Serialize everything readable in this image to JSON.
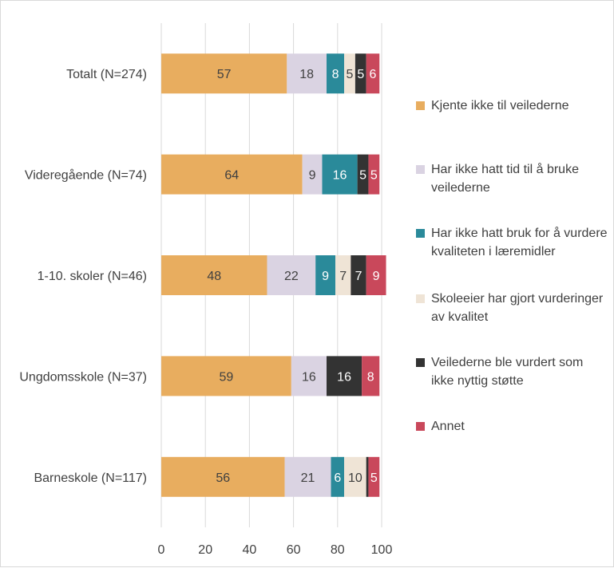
{
  "chart_data": {
    "type": "bar",
    "orientation": "horizontal",
    "stacked": true,
    "categories": [
      "Totalt (N=274)",
      "Videregående (N=74)",
      "1-10. skoler (N=46)",
      "Ungdomsskole (N=37)",
      "Barneskole (N=117)"
    ],
    "series": [
      {
        "name": "Kjente ikke til veilederne",
        "color": "#E8AD5F",
        "label_color": "#404040",
        "values": [
          57,
          64,
          48,
          59,
          56
        ]
      },
      {
        "name": "Har ikke hatt tid til å bruke veilederne",
        "color": "#DAD3E2",
        "label_color": "#404040",
        "values": [
          18,
          9,
          22,
          16,
          21
        ]
      },
      {
        "name": "Har ikke hatt bruk for å vurdere kvaliteten i læremidler",
        "color": "#2A8A9A",
        "label_color": "#ffffff",
        "values": [
          8,
          16,
          9,
          0,
          6
        ]
      },
      {
        "name": "Skoleeier har gjort vurderinger av kvalitet",
        "color": "#EFE4D6",
        "label_color": "#404040",
        "values": [
          5,
          0,
          7,
          0,
          10
        ]
      },
      {
        "name": "Veilederne ble vurdert som ikke nyttig støtte",
        "color": "#333333",
        "label_color": "#ffffff",
        "values": [
          5,
          5,
          7,
          16,
          1
        ]
      },
      {
        "name": "Annet",
        "color": "#C9485B",
        "label_color": "#ffffff",
        "values": [
          6,
          5,
          9,
          8,
          5
        ]
      }
    ],
    "xlim": [
      0,
      100
    ],
    "xticks": [
      "0",
      "20",
      "40",
      "60",
      "80",
      "100"
    ],
    "grid": true,
    "legend_position": "right",
    "title": "",
    "xlabel": "",
    "ylabel": ""
  }
}
